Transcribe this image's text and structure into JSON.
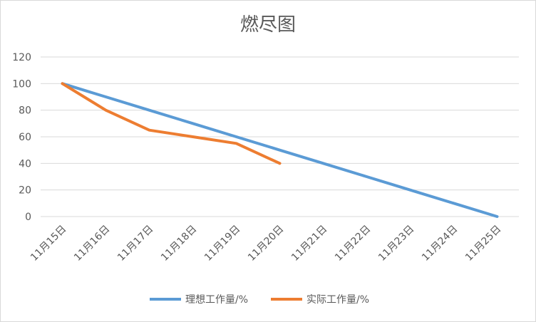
{
  "chart_data": {
    "type": "line",
    "title": "燃尽图",
    "categories": [
      "11月15日",
      "11月16日",
      "11月17日",
      "11月18日",
      "11月19日",
      "11月20日",
      "11月21日",
      "11月22日",
      "11月23日",
      "11月24日",
      "11月25日"
    ],
    "series": [
      {
        "name": "理想工作量/%",
        "color": "#5b9bd5",
        "values": [
          100,
          90,
          80,
          70,
          60,
          50,
          40,
          30,
          20,
          10,
          0
        ]
      },
      {
        "name": "实际工作量/%",
        "color": "#ed7d31",
        "values": [
          100,
          80,
          65,
          60,
          55,
          40,
          null,
          null,
          null,
          null,
          null
        ]
      }
    ],
    "yticks": [
      0,
      20,
      40,
      60,
      80,
      100,
      120
    ],
    "ylim": [
      0,
      120
    ],
    "grid": true,
    "legend": "bottom"
  }
}
